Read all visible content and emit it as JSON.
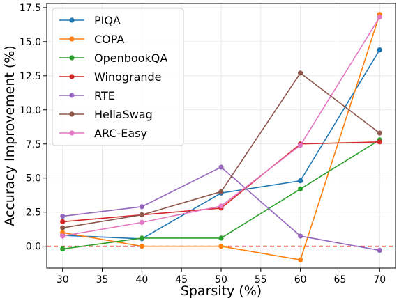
{
  "chart_data": {
    "type": "line",
    "title": "",
    "xlabel": "Sparsity (%)",
    "ylabel": "Accuracy Improvement (%)",
    "x": [
      30,
      40,
      50,
      60,
      70
    ],
    "xlim": [
      28,
      72
    ],
    "ylim": [
      -1.6,
      17.8
    ],
    "xticks": [
      30,
      35,
      40,
      45,
      50,
      55,
      60,
      65,
      70
    ],
    "yticks": [
      0.0,
      2.5,
      5.0,
      7.5,
      10.0,
      12.5,
      15.0,
      17.5
    ],
    "xtick_labels": [
      "30",
      "35",
      "40",
      "45",
      "50",
      "55",
      "60",
      "65",
      "70"
    ],
    "ytick_labels": [
      "0.0",
      "2.5",
      "5.0",
      "7.5",
      "10.0",
      "12.5",
      "15.0",
      "17.5"
    ],
    "grid": true,
    "legend_position": "top-left",
    "reference_line": {
      "y": 0,
      "color": "#d62728",
      "style": "dashed"
    },
    "series": [
      {
        "name": "PIQA",
        "color": "#1f77b4",
        "values": [
          0.8,
          0.55,
          3.9,
          4.8,
          14.4
        ]
      },
      {
        "name": "COPA",
        "color": "#ff7f0e",
        "values": [
          1.0,
          0.0,
          0.0,
          -1.0,
          17.0
        ]
      },
      {
        "name": "OpenbookQA",
        "color": "#2ca02c",
        "values": [
          -0.2,
          0.6,
          0.6,
          4.2,
          7.8
        ]
      },
      {
        "name": "Winogrande",
        "color": "#d62728",
        "values": [
          1.8,
          2.3,
          2.8,
          7.5,
          7.65
        ]
      },
      {
        "name": "RTE",
        "color": "#9467bd",
        "values": [
          2.2,
          2.9,
          5.8,
          0.75,
          -0.3
        ]
      },
      {
        "name": "HellaSwag",
        "color": "#8c564b",
        "values": [
          1.35,
          2.3,
          4.0,
          12.7,
          8.3
        ]
      },
      {
        "name": "ARC-Easy",
        "color": "#e377c2",
        "values": [
          0.75,
          1.75,
          2.95,
          7.4,
          16.8
        ]
      }
    ]
  }
}
